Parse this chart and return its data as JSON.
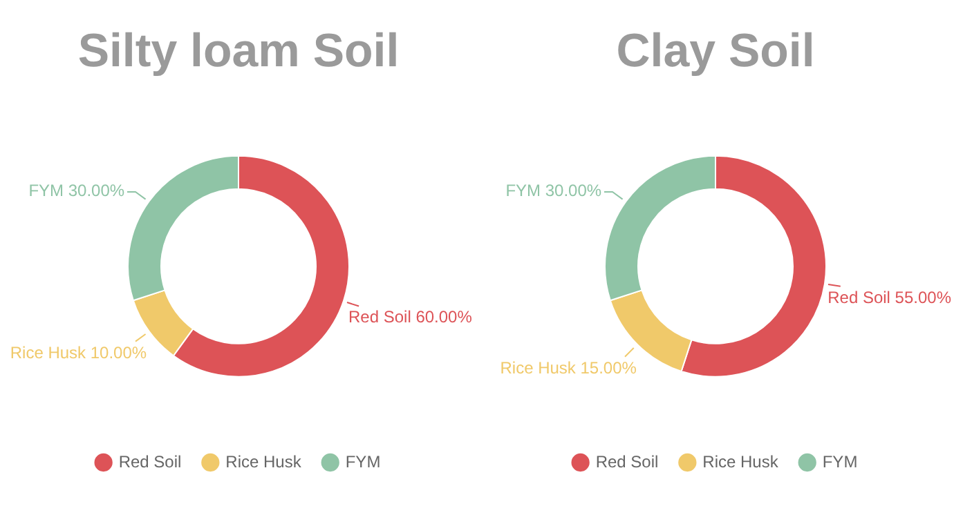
{
  "chart_data": [
    {
      "type": "donut",
      "title": "Silty loam Soil",
      "categories": [
        "Red Soil",
        "Rice Husk",
        "FYM"
      ],
      "values": [
        60,
        10,
        30
      ],
      "colors": [
        "#dd5357",
        "#f0c96a",
        "#8fc4a6"
      ],
      "value_labels": [
        "60.00%",
        "10.00%",
        "30.00%"
      ],
      "legend": "bottom"
    },
    {
      "type": "donut",
      "title": "Clay Soil",
      "categories": [
        "Red Soil",
        "Rice Husk",
        "FYM"
      ],
      "values": [
        55,
        15,
        30
      ],
      "colors": [
        "#dd5357",
        "#f0c96a",
        "#8fc4a6"
      ],
      "value_labels": [
        "55.00%",
        "15.00%",
        "30.00%"
      ],
      "legend": "bottom"
    }
  ]
}
